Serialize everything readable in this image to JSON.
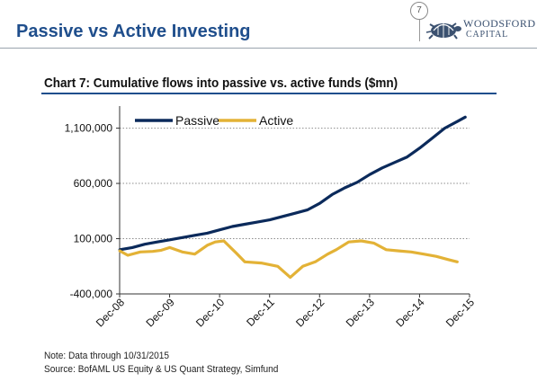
{
  "header": {
    "slide_title": "Passive vs Active Investing",
    "page_number": "7",
    "logo_line1": "WOODSFORD",
    "logo_line2": "CAPITAL"
  },
  "chart_data": {
    "type": "line",
    "title": "Chart 7: Cumulative flows into passive vs. active funds ($mn)",
    "xlabel": "",
    "ylabel": "",
    "x_ticks": [
      "Dec-08",
      "Dec-09",
      "Dec-10",
      "Dec-11",
      "Dec-12",
      "Dec-13",
      "Dec-14",
      "Dec-15"
    ],
    "y_ticks": [
      -400000,
      100000,
      600000,
      1100000
    ],
    "y_tick_labels": [
      "-400,000",
      "100,000",
      "600,000",
      "1,100,000"
    ],
    "ylim": [
      -400000,
      1300000
    ],
    "xlim": [
      2008.917,
      2015.917
    ],
    "grid": "horizontal",
    "legend_position": "top-left",
    "series": [
      {
        "name": "Passive",
        "color": "#0b2a5b",
        "points": [
          [
            2008.92,
            0
          ],
          [
            2009.17,
            20000
          ],
          [
            2009.42,
            50000
          ],
          [
            2009.67,
            70000
          ],
          [
            2009.92,
            90000
          ],
          [
            2010.17,
            110000
          ],
          [
            2010.42,
            130000
          ],
          [
            2010.67,
            150000
          ],
          [
            2010.92,
            180000
          ],
          [
            2011.17,
            210000
          ],
          [
            2011.42,
            230000
          ],
          [
            2011.67,
            250000
          ],
          [
            2011.92,
            270000
          ],
          [
            2012.17,
            300000
          ],
          [
            2012.42,
            330000
          ],
          [
            2012.67,
            360000
          ],
          [
            2012.92,
            420000
          ],
          [
            2013.17,
            500000
          ],
          [
            2013.42,
            560000
          ],
          [
            2013.67,
            610000
          ],
          [
            2013.92,
            680000
          ],
          [
            2014.17,
            740000
          ],
          [
            2014.42,
            790000
          ],
          [
            2014.67,
            840000
          ],
          [
            2014.92,
            920000
          ],
          [
            2015.17,
            1010000
          ],
          [
            2015.42,
            1100000
          ],
          [
            2015.67,
            1160000
          ],
          [
            2015.83,
            1200000
          ]
        ]
      },
      {
        "name": "Active",
        "color": "#e3b236",
        "points": [
          [
            2008.92,
            -10000
          ],
          [
            2009.08,
            -50000
          ],
          [
            2009.33,
            -20000
          ],
          [
            2009.58,
            -15000
          ],
          [
            2009.75,
            -5000
          ],
          [
            2009.92,
            20000
          ],
          [
            2010.17,
            -20000
          ],
          [
            2010.42,
            -40000
          ],
          [
            2010.67,
            40000
          ],
          [
            2010.83,
            70000
          ],
          [
            2011.0,
            80000
          ],
          [
            2011.25,
            -30000
          ],
          [
            2011.42,
            -110000
          ],
          [
            2011.75,
            -120000
          ],
          [
            2012.08,
            -150000
          ],
          [
            2012.33,
            -250000
          ],
          [
            2012.58,
            -150000
          ],
          [
            2012.83,
            -110000
          ],
          [
            2013.08,
            -40000
          ],
          [
            2013.25,
            0
          ],
          [
            2013.5,
            70000
          ],
          [
            2013.75,
            80000
          ],
          [
            2014.0,
            60000
          ],
          [
            2014.25,
            0
          ],
          [
            2014.5,
            -10000
          ],
          [
            2014.75,
            -20000
          ],
          [
            2015.0,
            -40000
          ],
          [
            2015.25,
            -60000
          ],
          [
            2015.5,
            -90000
          ],
          [
            2015.67,
            -110000
          ]
        ]
      }
    ]
  },
  "notes": {
    "note": "Note: Data through 10/31/2015",
    "source": "Source: BofAML US Equity & US Quant Strategy, Simfund"
  }
}
